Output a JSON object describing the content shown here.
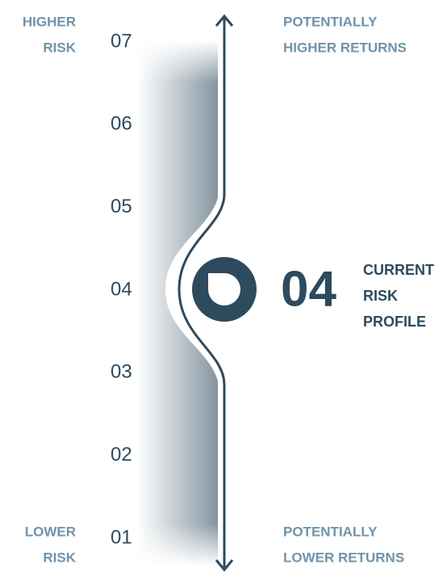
{
  "top_left": [
    "HIGHER",
    "RISK"
  ],
  "bottom_left": [
    "LOWER",
    "RISK"
  ],
  "top_right": [
    "POTENTIALLY",
    "HIGHER RETURNS"
  ],
  "bottom_right": [
    "POTENTIALLY",
    "LOWER RETURNS"
  ],
  "levels": [
    "07",
    "06",
    "05",
    "04",
    "03",
    "02",
    "01"
  ],
  "current": {
    "value": "04",
    "caption": [
      "CURRENT",
      "RISK",
      "PROFILE"
    ]
  }
}
